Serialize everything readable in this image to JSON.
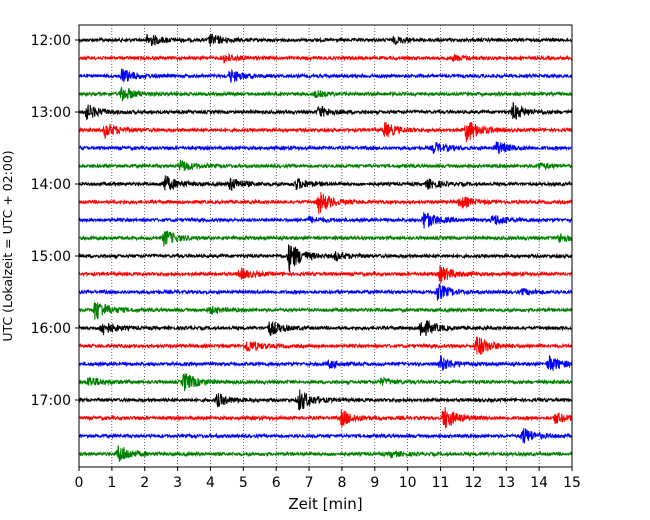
{
  "chart_data": {
    "type": "line",
    "title": "",
    "xlabel": "Zeit  [min]",
    "ylabel": "UTC (Lokalzeit = UTC + 02:00)",
    "xlim": [
      0,
      15
    ],
    "x_ticks": [
      0,
      1,
      2,
      3,
      4,
      5,
      6,
      7,
      8,
      9,
      10,
      11,
      12,
      13,
      14,
      15
    ],
    "grid": "vertical dotted",
    "trace_interval_min": 15,
    "time_labels": [
      "12:00",
      "13:00",
      "14:00",
      "15:00",
      "16:00",
      "17:00"
    ],
    "color_cycle": [
      "#000000",
      "#ff0000",
      "#0000ff",
      "#008000"
    ],
    "series": [
      {
        "start": "12:00",
        "events": [
          [
            2.1,
            0.7
          ],
          [
            4.0,
            0.6
          ],
          [
            9.6,
            0.35
          ]
        ]
      },
      {
        "start": "12:15",
        "events": [
          [
            4.4,
            0.45
          ],
          [
            11.4,
            0.3
          ]
        ]
      },
      {
        "start": "12:30",
        "events": [
          [
            1.3,
            0.8
          ],
          [
            4.6,
            0.7
          ]
        ]
      },
      {
        "start": "12:45",
        "events": [
          [
            1.3,
            0.8
          ],
          [
            7.2,
            0.3
          ]
        ]
      },
      {
        "start": "13:00",
        "events": [
          [
            0.2,
            0.9
          ],
          [
            7.3,
            0.6
          ],
          [
            13.2,
            0.9
          ]
        ]
      },
      {
        "start": "13:15",
        "events": [
          [
            0.8,
            0.8
          ],
          [
            9.3,
            0.8
          ],
          [
            11.8,
            1.3
          ]
        ]
      },
      {
        "start": "13:30",
        "events": [
          [
            10.8,
            0.6
          ],
          [
            12.7,
            0.7
          ]
        ]
      },
      {
        "start": "13:45",
        "events": [
          [
            3.1,
            0.6
          ],
          [
            14.0,
            0.3
          ]
        ]
      },
      {
        "start": "14:00",
        "events": [
          [
            2.6,
            0.9
          ],
          [
            4.6,
            0.7
          ],
          [
            6.6,
            0.6
          ],
          [
            10.6,
            0.5
          ]
        ]
      },
      {
        "start": "14:15",
        "events": [
          [
            7.3,
            1.2
          ],
          [
            11.6,
            0.7
          ]
        ]
      },
      {
        "start": "14:30",
        "events": [
          [
            7.0,
            0.3
          ],
          [
            10.5,
            1.0
          ],
          [
            12.6,
            0.6
          ]
        ]
      },
      {
        "start": "14:45",
        "events": [
          [
            2.6,
            0.9
          ],
          [
            14.6,
            0.5
          ]
        ]
      },
      {
        "start": "15:00",
        "events": [
          [
            6.4,
            1.6
          ],
          [
            7.8,
            0.4
          ]
        ]
      },
      {
        "start": "15:15",
        "events": [
          [
            4.9,
            0.6
          ],
          [
            11.0,
            0.9
          ]
        ]
      },
      {
        "start": "15:30",
        "events": [
          [
            10.9,
            0.9
          ],
          [
            13.5,
            0.3
          ]
        ]
      },
      {
        "start": "15:45",
        "events": [
          [
            0.5,
            1.2
          ],
          [
            4.0,
            0.35
          ]
        ]
      },
      {
        "start": "16:00",
        "events": [
          [
            0.7,
            0.8
          ],
          [
            5.8,
            0.8
          ],
          [
            10.4,
            1.1
          ]
        ]
      },
      {
        "start": "16:15",
        "events": [
          [
            5.1,
            0.7
          ],
          [
            12.1,
            1.2
          ]
        ]
      },
      {
        "start": "16:30",
        "events": [
          [
            7.6,
            0.4
          ],
          [
            11.0,
            0.8
          ],
          [
            14.3,
            0.9
          ]
        ]
      },
      {
        "start": "16:45",
        "events": [
          [
            0.3,
            0.6
          ],
          [
            3.2,
            1.0
          ],
          [
            9.2,
            0.35
          ]
        ]
      },
      {
        "start": "17:00",
        "events": [
          [
            4.2,
            0.7
          ],
          [
            6.7,
            1.2
          ]
        ]
      },
      {
        "start": "17:15",
        "events": [
          [
            8.0,
            0.9
          ],
          [
            11.1,
            1.3
          ],
          [
            14.5,
            0.6
          ]
        ]
      },
      {
        "start": "17:30",
        "events": [
          [
            13.5,
            0.9
          ]
        ]
      },
      {
        "start": "17:45",
        "events": [
          [
            1.2,
            1.0
          ],
          [
            9.5,
            0.3
          ]
        ]
      }
    ]
  }
}
